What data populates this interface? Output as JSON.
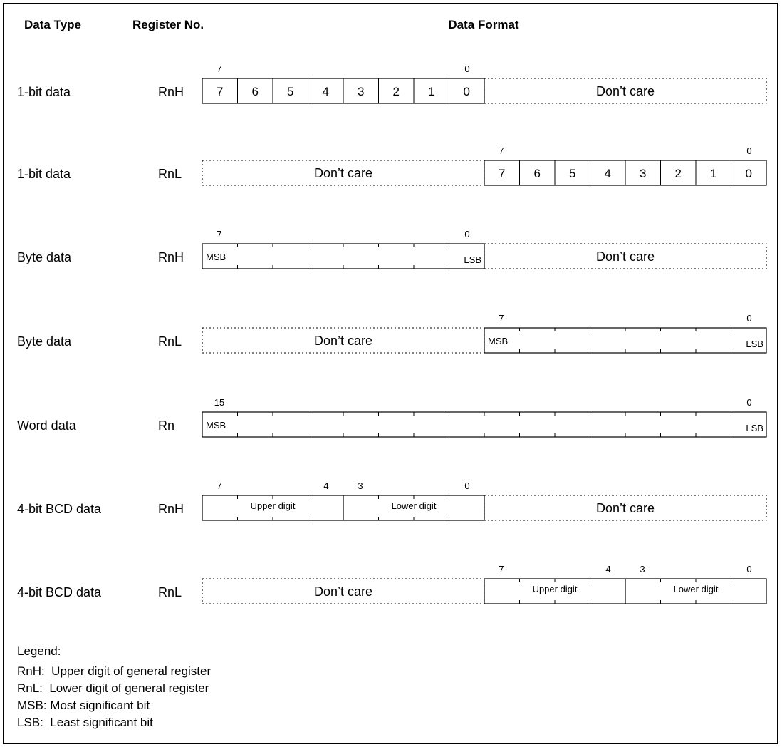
{
  "headers": {
    "data_type": "Data Type",
    "register_no": "Register No.",
    "data_format": "Data Format"
  },
  "rows": [
    {
      "type": "1-bit data",
      "reg": "RnH",
      "format": "bits",
      "side": "left",
      "bit_hi": "7",
      "bit_lo": "0",
      "cells": [
        "7",
        "6",
        "5",
        "4",
        "3",
        "2",
        "1",
        "0"
      ],
      "dont_care": "Don’t care"
    },
    {
      "type": "1-bit data",
      "reg": "RnL",
      "format": "bits",
      "side": "right",
      "bit_hi": "7",
      "bit_lo": "0",
      "cells": [
        "7",
        "6",
        "5",
        "4",
        "3",
        "2",
        "1",
        "0"
      ],
      "dont_care": "Don’t care"
    },
    {
      "type": "Byte data",
      "reg": "RnH",
      "format": "byte",
      "side": "left",
      "bit_hi": "7",
      "bit_lo": "0",
      "msb": "MSB",
      "lsb": "LSB",
      "dont_care": "Don’t care"
    },
    {
      "type": "Byte data",
      "reg": "RnL",
      "format": "byte",
      "side": "right",
      "bit_hi": "7",
      "bit_lo": "0",
      "msb": "MSB",
      "lsb": "LSB",
      "dont_care": "Don’t care"
    },
    {
      "type": "Word data",
      "reg": "Rn",
      "format": "word",
      "side": "full",
      "bit_hi": "15",
      "bit_lo": "0",
      "msb": "MSB",
      "lsb": "LSB"
    },
    {
      "type": "4-bit BCD data",
      "reg": "RnH",
      "format": "bcd",
      "side": "left",
      "bits": [
        "7",
        "4",
        "3",
        "0"
      ],
      "upper": "Upper digit",
      "lower": "Lower digit",
      "dont_care": "Don’t care"
    },
    {
      "type": "4-bit BCD data",
      "reg": "RnL",
      "format": "bcd",
      "side": "right",
      "bits": [
        "7",
        "4",
        "3",
        "0"
      ],
      "upper": "Upper digit",
      "lower": "Lower digit",
      "dont_care": "Don’t care"
    }
  ],
  "legend": {
    "title": "Legend:",
    "items": [
      "RnH:  Upper digit of general register",
      "RnL:  Lower digit of general register",
      "MSB: Most significant bit",
      "LSB:  Least significant bit"
    ]
  }
}
